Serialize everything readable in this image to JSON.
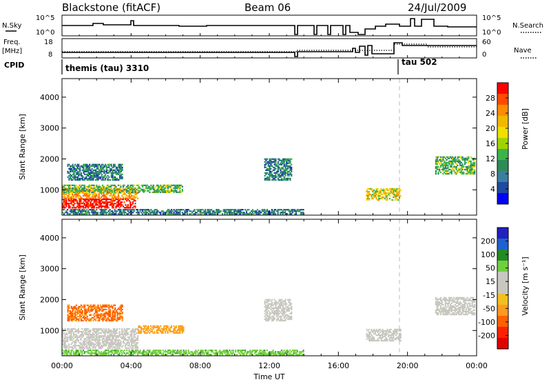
{
  "header": {
    "station": "Blackstone (fitACF)",
    "beam": "Beam 06",
    "date": "24/Jul/2009"
  },
  "strip_labels": {
    "nsky": "N.Sky",
    "nsearch": "N.Search",
    "freq_line1": "Freq.",
    "freq_line2": "[MHz]",
    "nave": "Nave",
    "cpid": "CPID",
    "nsky_top_tick": "10^5",
    "nsky_bottom_tick": "10^0",
    "nsearch_top_tick": "10^5",
    "nsearch_bottom_tick": "10^0",
    "freq_top_tick": "18",
    "freq_bottom_tick": "8",
    "nave_top_tick": "60",
    "nave_bottom_tick": "0"
  },
  "cpid_segments": [
    {
      "label": "themis (tau) 3310",
      "start_hour": 0.0
    },
    {
      "label": "tau 502",
      "start_hour": 19.4
    }
  ],
  "colorbars": {
    "power": {
      "title": "Power [dB]",
      "ticks": [
        "28",
        "24",
        "20",
        "16",
        "12",
        "8",
        "4"
      ],
      "colors": [
        "#ff0000",
        "#ff4a00",
        "#ff8c00",
        "#f2b800",
        "#f0e000",
        "#a0d400",
        "#3cb44b",
        "#2e8b57",
        "#3a7fa0",
        "#1e4aa0",
        "#0000ff"
      ]
    },
    "velocity": {
      "title": "Velocity [m s⁻¹]",
      "ticks": [
        "200",
        "100",
        "50",
        "15",
        "-15",
        "-50",
        "-100",
        "-200"
      ],
      "colors": [
        "#2020c0",
        "#2060d0",
        "#228b22",
        "#6fcf3f",
        "#c8c8c0",
        "#c8c8c0",
        "#f0c020",
        "#ff9a20",
        "#ff6000",
        "#ff2000",
        "#e00000"
      ]
    }
  },
  "chart_data": [
    {
      "type": "heatmap",
      "panel": "power",
      "xlabel": "",
      "ylabel": "Slant Range [km]",
      "xlim": [
        0,
        24
      ],
      "ylim": [
        180,
        4600
      ],
      "yticks": [
        "1000",
        "2000",
        "3000",
        "4000"
      ],
      "xticks": [
        "00:00",
        "04:00",
        "08:00",
        "12:00",
        "16:00",
        "20:00",
        "00:00"
      ],
      "colorbar_units": "dB",
      "regions": [
        {
          "t0": 0.0,
          "t1": 4.4,
          "r0": 700,
          "r1": 1050,
          "dB": 20
        },
        {
          "t0": 0.0,
          "t1": 4.2,
          "r0": 400,
          "r1": 700,
          "dB": 28
        },
        {
          "t0": 0.0,
          "t1": 7.0,
          "r0": 900,
          "r1": 1150,
          "dB": 12
        },
        {
          "t0": 0.0,
          "t1": 14.0,
          "r0": 200,
          "r1": 350,
          "dB": 8
        },
        {
          "t0": 0.3,
          "t1": 3.5,
          "r0": 1300,
          "r1": 1800,
          "dB": 8
        },
        {
          "t0": 11.7,
          "t1": 13.3,
          "r0": 1300,
          "r1": 2000,
          "dB": 8
        },
        {
          "t0": 17.6,
          "t1": 19.6,
          "r0": 650,
          "r1": 1050,
          "dB": 16
        },
        {
          "t0": 21.6,
          "t1": 23.9,
          "r0": 1500,
          "r1": 2050,
          "dB": 12
        }
      ]
    },
    {
      "type": "heatmap",
      "panel": "velocity",
      "xlabel": "Time UT",
      "ylabel": "Slant Range [km]",
      "xlim": [
        0,
        24
      ],
      "ylim": [
        180,
        4600
      ],
      "yticks": [
        "1000",
        "2000",
        "3000",
        "4000"
      ],
      "xticks": [
        "00:00",
        "04:00",
        "08:00",
        "12:00",
        "16:00",
        "20:00",
        "00:00"
      ],
      "colorbar_units": "m s^-1",
      "regions": [
        {
          "t0": 0.0,
          "t1": 4.4,
          "r0": 400,
          "r1": 1050,
          "v": 0
        },
        {
          "t0": 4.4,
          "t1": 7.0,
          "r0": 900,
          "r1": 1150,
          "v": -50
        },
        {
          "t0": 0.0,
          "t1": 14.0,
          "r0": 200,
          "r1": 350,
          "v": 30
        },
        {
          "t0": 0.3,
          "t1": 3.5,
          "r0": 1300,
          "r1": 1800,
          "v": -80
        },
        {
          "t0": 11.7,
          "t1": 13.3,
          "r0": 1300,
          "r1": 2000,
          "v": 0
        },
        {
          "t0": 17.6,
          "t1": 19.6,
          "r0": 650,
          "r1": 1050,
          "v": 0
        },
        {
          "t0": 21.6,
          "t1": 23.9,
          "r0": 1500,
          "r1": 2050,
          "v": 0
        }
      ]
    }
  ]
}
